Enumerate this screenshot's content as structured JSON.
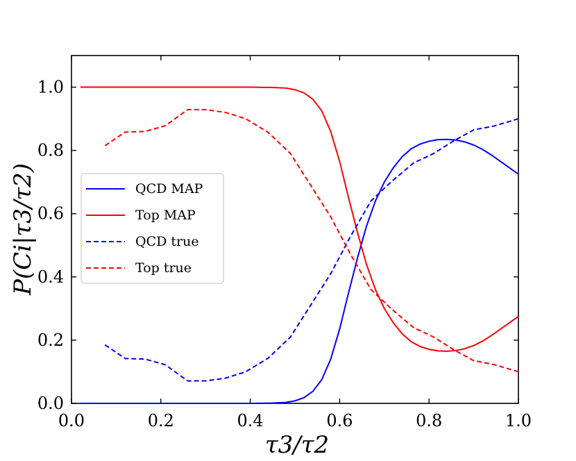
{
  "chart_data": {
    "type": "line",
    "title": "",
    "xlabel": "τ3/τ2",
    "ylabel": "P(Ci|τ3/τ2)",
    "xlim": [
      0.0,
      1.0
    ],
    "ylim": [
      0.0,
      1.1
    ],
    "xticks": [
      "0.0",
      "0.2",
      "0.4",
      "0.6",
      "0.8",
      "1.0"
    ],
    "yticks": [
      "0.0",
      "0.2",
      "0.4",
      "0.6",
      "0.8",
      "1.0"
    ],
    "grid": false,
    "legend_position": "center-left",
    "series": [
      {
        "name": "QCD MAP",
        "color": "#0000ff",
        "style": "solid",
        "x": [
          0.02,
          0.1,
          0.2,
          0.3,
          0.4,
          0.45,
          0.48,
          0.5,
          0.52,
          0.54,
          0.56,
          0.58,
          0.6,
          0.62,
          0.64,
          0.66,
          0.68,
          0.7,
          0.72,
          0.74,
          0.76,
          0.78,
          0.8,
          0.82,
          0.84,
          0.86,
          0.88,
          0.9,
          0.92,
          0.94,
          0.96,
          0.98,
          1.0
        ],
        "y": [
          0.0,
          0.0,
          0.0,
          0.0,
          0.0,
          0.001,
          0.003,
          0.008,
          0.018,
          0.038,
          0.075,
          0.14,
          0.235,
          0.35,
          0.46,
          0.56,
          0.64,
          0.7,
          0.745,
          0.78,
          0.805,
          0.82,
          0.829,
          0.834,
          0.835,
          0.833,
          0.827,
          0.817,
          0.803,
          0.785,
          0.765,
          0.745,
          0.725
        ]
      },
      {
        "name": "Top MAP",
        "color": "#ff0000",
        "style": "solid",
        "x": [
          0.02,
          0.1,
          0.2,
          0.3,
          0.4,
          0.45,
          0.48,
          0.5,
          0.52,
          0.54,
          0.56,
          0.58,
          0.6,
          0.62,
          0.64,
          0.66,
          0.68,
          0.7,
          0.72,
          0.74,
          0.76,
          0.78,
          0.8,
          0.82,
          0.84,
          0.86,
          0.88,
          0.9,
          0.92,
          0.94,
          0.96,
          0.98,
          1.0
        ],
        "y": [
          1.0,
          1.0,
          1.0,
          1.0,
          1.0,
          0.999,
          0.997,
          0.992,
          0.982,
          0.962,
          0.925,
          0.86,
          0.765,
          0.65,
          0.54,
          0.44,
          0.36,
          0.3,
          0.255,
          0.22,
          0.195,
          0.18,
          0.171,
          0.166,
          0.165,
          0.167,
          0.173,
          0.183,
          0.197,
          0.215,
          0.235,
          0.255,
          0.275
        ]
      },
      {
        "name": "QCD true",
        "color": "#0000ff",
        "style": "dashed",
        "x": [
          0.075,
          0.12,
          0.165,
          0.21,
          0.26,
          0.3,
          0.345,
          0.39,
          0.44,
          0.49,
          0.535,
          0.58,
          0.625,
          0.67,
          0.715,
          0.765,
          0.81,
          0.855,
          0.9,
          0.945,
          1.0
        ],
        "y": [
          0.185,
          0.142,
          0.14,
          0.122,
          0.071,
          0.071,
          0.08,
          0.1,
          0.143,
          0.21,
          0.31,
          0.41,
          0.53,
          0.64,
          0.7,
          0.76,
          0.79,
          0.83,
          0.865,
          0.877,
          0.9
        ]
      },
      {
        "name": "Top true",
        "color": "#ff0000",
        "style": "dashed",
        "x": [
          0.075,
          0.12,
          0.165,
          0.21,
          0.26,
          0.3,
          0.345,
          0.39,
          0.44,
          0.49,
          0.535,
          0.58,
          0.625,
          0.67,
          0.715,
          0.765,
          0.81,
          0.855,
          0.9,
          0.945,
          1.0
        ],
        "y": [
          0.815,
          0.858,
          0.86,
          0.878,
          0.929,
          0.929,
          0.92,
          0.9,
          0.857,
          0.79,
          0.69,
          0.59,
          0.47,
          0.36,
          0.3,
          0.24,
          0.21,
          0.17,
          0.135,
          0.123,
          0.1
        ]
      }
    ]
  }
}
